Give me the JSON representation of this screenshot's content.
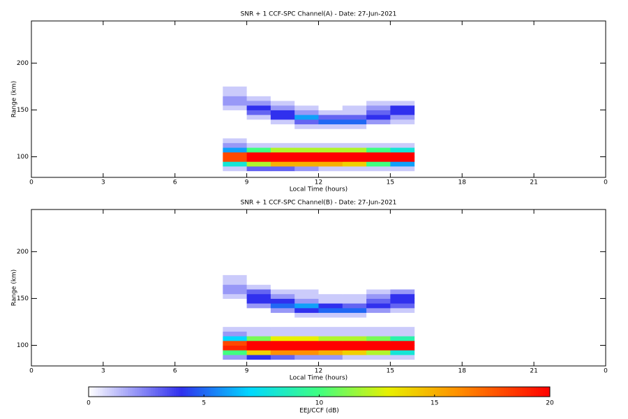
{
  "chart_data": [
    {
      "type": "heatmap",
      "title": "SNR + 1 CCF-SPC Channel(A) - Date: 27-Jun-2021",
      "xlabel": "Local Time (hours)",
      "ylabel": "Range (km)",
      "xlim": [
        0,
        24
      ],
      "xticks": [
        0,
        3,
        6,
        9,
        12,
        15,
        18,
        21,
        {
          "value": 24,
          "label": "0"
        }
      ],
      "ylim": [
        78,
        245
      ],
      "yticks": [
        100,
        150,
        200
      ],
      "x": [
        7,
        8,
        9,
        10,
        11,
        12,
        13,
        14,
        15,
        16
      ],
      "y": [
        85,
        90,
        95,
        100,
        105,
        110,
        115,
        120,
        125,
        130,
        135,
        140,
        145,
        150,
        155,
        160,
        165,
        170,
        175
      ],
      "z": [
        [
          0,
          1,
          3,
          3,
          2,
          1,
          1,
          1,
          1
        ],
        [
          0,
          8,
          12,
          15,
          15,
          15,
          14,
          10,
          6
        ],
        [
          0,
          18,
          20,
          20,
          20,
          20,
          20,
          20,
          20
        ],
        [
          0,
          18,
          20,
          20,
          20,
          20,
          20,
          20,
          20
        ],
        [
          0,
          6,
          10,
          12,
          12,
          12,
          12,
          10,
          8
        ],
        [
          0,
          2,
          1,
          1,
          1,
          1,
          1,
          1,
          1
        ],
        [
          0,
          1,
          0,
          0,
          0,
          0,
          0,
          0,
          0
        ],
        [
          0,
          0,
          0,
          0,
          0,
          0,
          0,
          0,
          0
        ],
        [
          0,
          0,
          0,
          0,
          0,
          0,
          0,
          0,
          0
        ],
        [
          0,
          0,
          0,
          0,
          1,
          1,
          1,
          0,
          0
        ],
        [
          0,
          0,
          0,
          1,
          3,
          5,
          5,
          2,
          1
        ],
        [
          0,
          0,
          1,
          4,
          6,
          3,
          3,
          4,
          2
        ],
        [
          0,
          0,
          3,
          4,
          2,
          1,
          1,
          3,
          4
        ],
        [
          0,
          1,
          4,
          2,
          1,
          0,
          1,
          2,
          4
        ],
        [
          0,
          2,
          2,
          1,
          0,
          0,
          0,
          1,
          1
        ],
        [
          0,
          2,
          1,
          0,
          0,
          0,
          0,
          0,
          0
        ],
        [
          0,
          1,
          0,
          0,
          0,
          0,
          0,
          0,
          0
        ],
        [
          0,
          1,
          0,
          0,
          0,
          0,
          0,
          0,
          0
        ]
      ]
    },
    {
      "type": "heatmap",
      "title": "SNR + 1 CCF-SPC Channel(B) - Date: 27-Jun-2021",
      "xlabel": "Local Time (hours)",
      "ylabel": "Range (km)",
      "xlim": [
        0,
        24
      ],
      "xticks": [
        0,
        3,
        6,
        9,
        12,
        15,
        18,
        21,
        {
          "value": 24,
          "label": "0"
        }
      ],
      "ylim": [
        78,
        245
      ],
      "yticks": [
        100,
        150,
        200
      ],
      "x": [
        7,
        8,
        9,
        10,
        11,
        12,
        13,
        14,
        15,
        16
      ],
      "y": [
        85,
        90,
        95,
        100,
        105,
        110,
        115,
        120,
        125,
        130,
        135,
        140,
        145,
        150,
        155,
        160,
        165,
        170,
        175
      ],
      "z": [
        [
          0,
          2,
          4,
          3,
          2,
          2,
          1,
          1,
          1
        ],
        [
          0,
          10,
          14,
          16,
          16,
          15,
          14,
          12,
          8
        ],
        [
          0,
          19,
          20,
          20,
          20,
          20,
          20,
          20,
          20
        ],
        [
          0,
          18,
          20,
          20,
          20,
          20,
          20,
          20,
          20
        ],
        [
          0,
          7,
          11,
          13,
          13,
          12,
          12,
          11,
          9
        ],
        [
          0,
          2,
          1,
          1,
          1,
          1,
          1,
          1,
          1
        ],
        [
          0,
          1,
          1,
          1,
          1,
          1,
          1,
          1,
          1
        ],
        [
          0,
          0,
          0,
          0,
          0,
          0,
          0,
          0,
          0
        ],
        [
          0,
          0,
          0,
          0,
          0,
          0,
          0,
          0,
          0
        ],
        [
          0,
          0,
          0,
          0,
          1,
          1,
          1,
          0,
          0
        ],
        [
          0,
          0,
          0,
          2,
          4,
          5,
          5,
          2,
          1
        ],
        [
          0,
          0,
          2,
          5,
          6,
          4,
          3,
          4,
          3
        ],
        [
          0,
          0,
          4,
          4,
          2,
          1,
          1,
          3,
          4
        ],
        [
          0,
          1,
          4,
          2,
          1,
          1,
          1,
          2,
          4
        ],
        [
          0,
          2,
          3,
          1,
          1,
          0,
          0,
          1,
          2
        ],
        [
          0,
          2,
          1,
          0,
          0,
          0,
          0,
          0,
          0
        ],
        [
          0,
          1,
          0,
          0,
          0,
          0,
          0,
          0,
          0
        ],
        [
          0,
          1,
          0,
          0,
          0,
          0,
          0,
          0,
          0
        ]
      ]
    },
    {
      "type": "colorbar",
      "label": "EEJ/CCF (dB)",
      "lim": [
        0,
        20
      ],
      "ticks": [
        0,
        5,
        10,
        15,
        20
      ],
      "colorscale": [
        [
          0,
          "#ffffff"
        ],
        [
          4,
          "#3030ee"
        ],
        [
          7,
          "#00d8ff"
        ],
        [
          10,
          "#40ff80"
        ],
        [
          13,
          "#e8f000"
        ],
        [
          16,
          "#ff9000"
        ],
        [
          20,
          "#ff0000"
        ]
      ]
    }
  ]
}
